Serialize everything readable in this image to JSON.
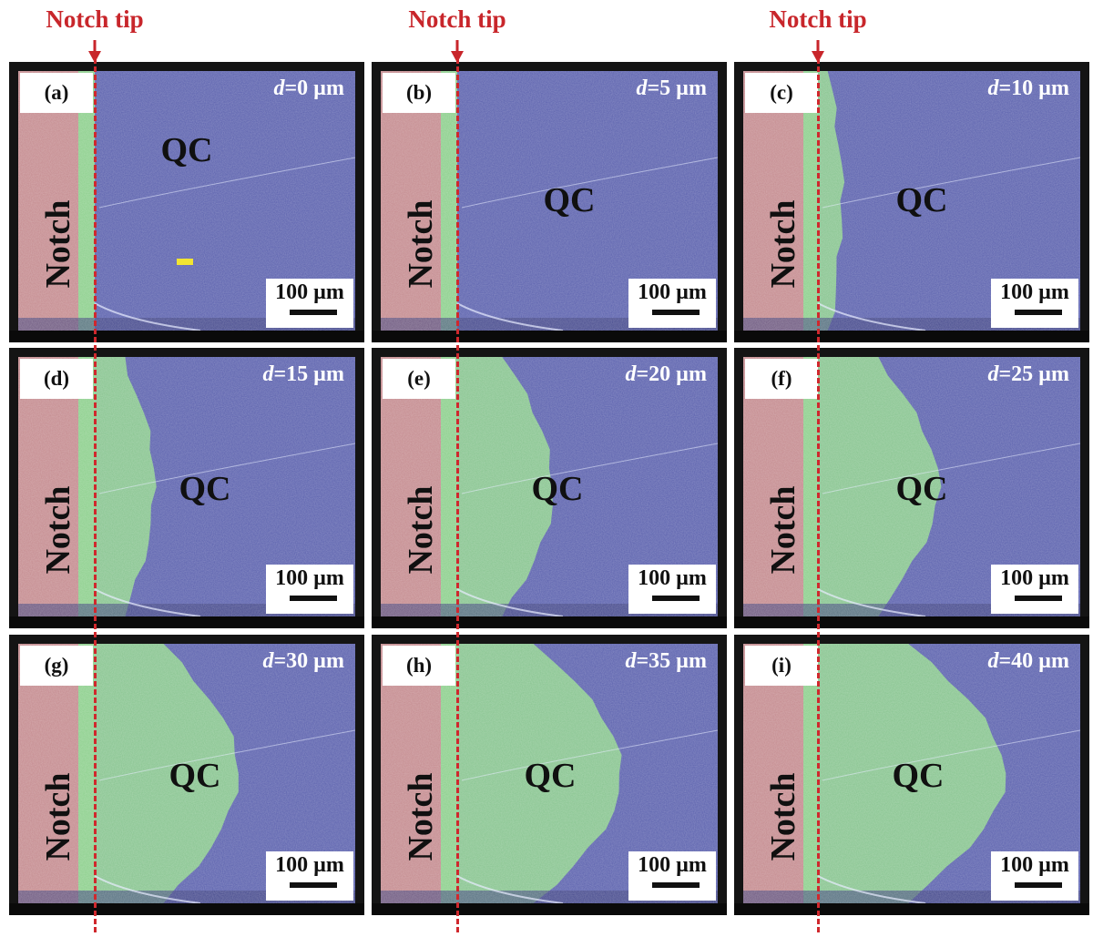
{
  "figure": {
    "notch_tip_label": "Notch tip",
    "notch_label": "Notch",
    "qc_label": "QC",
    "scale_bar_label": "100 µm",
    "distance_prefix": "d",
    "colors": {
      "notch_tip_red": "#c8262b",
      "notch_region": "#c48a8e",
      "green_region": "#8ccf8c",
      "qc_region": "#5a60ad",
      "yellow_marker": "#f3e531"
    },
    "panels": [
      {
        "label": "(a)",
        "distance": "=0 µm",
        "green_fraction": 0.0
      },
      {
        "label": "(b)",
        "distance": "=5 µm",
        "green_fraction": 0.0
      },
      {
        "label": "(c)",
        "distance": "=10 µm",
        "green_fraction": 0.08
      },
      {
        "label": "(d)",
        "distance": "=15 µm",
        "green_fraction": 0.2
      },
      {
        "label": "(e)",
        "distance": "=20 µm",
        "green_fraction": 0.32
      },
      {
        "label": "(f)",
        "distance": "=25 µm",
        "green_fraction": 0.4
      },
      {
        "label": "(g)",
        "distance": "=30 µm",
        "green_fraction": 0.48
      },
      {
        "label": "(h)",
        "distance": "=35 µm",
        "green_fraction": 0.55
      },
      {
        "label": "(i)",
        "distance": "=40 µm",
        "green_fraction": 0.62
      }
    ]
  }
}
